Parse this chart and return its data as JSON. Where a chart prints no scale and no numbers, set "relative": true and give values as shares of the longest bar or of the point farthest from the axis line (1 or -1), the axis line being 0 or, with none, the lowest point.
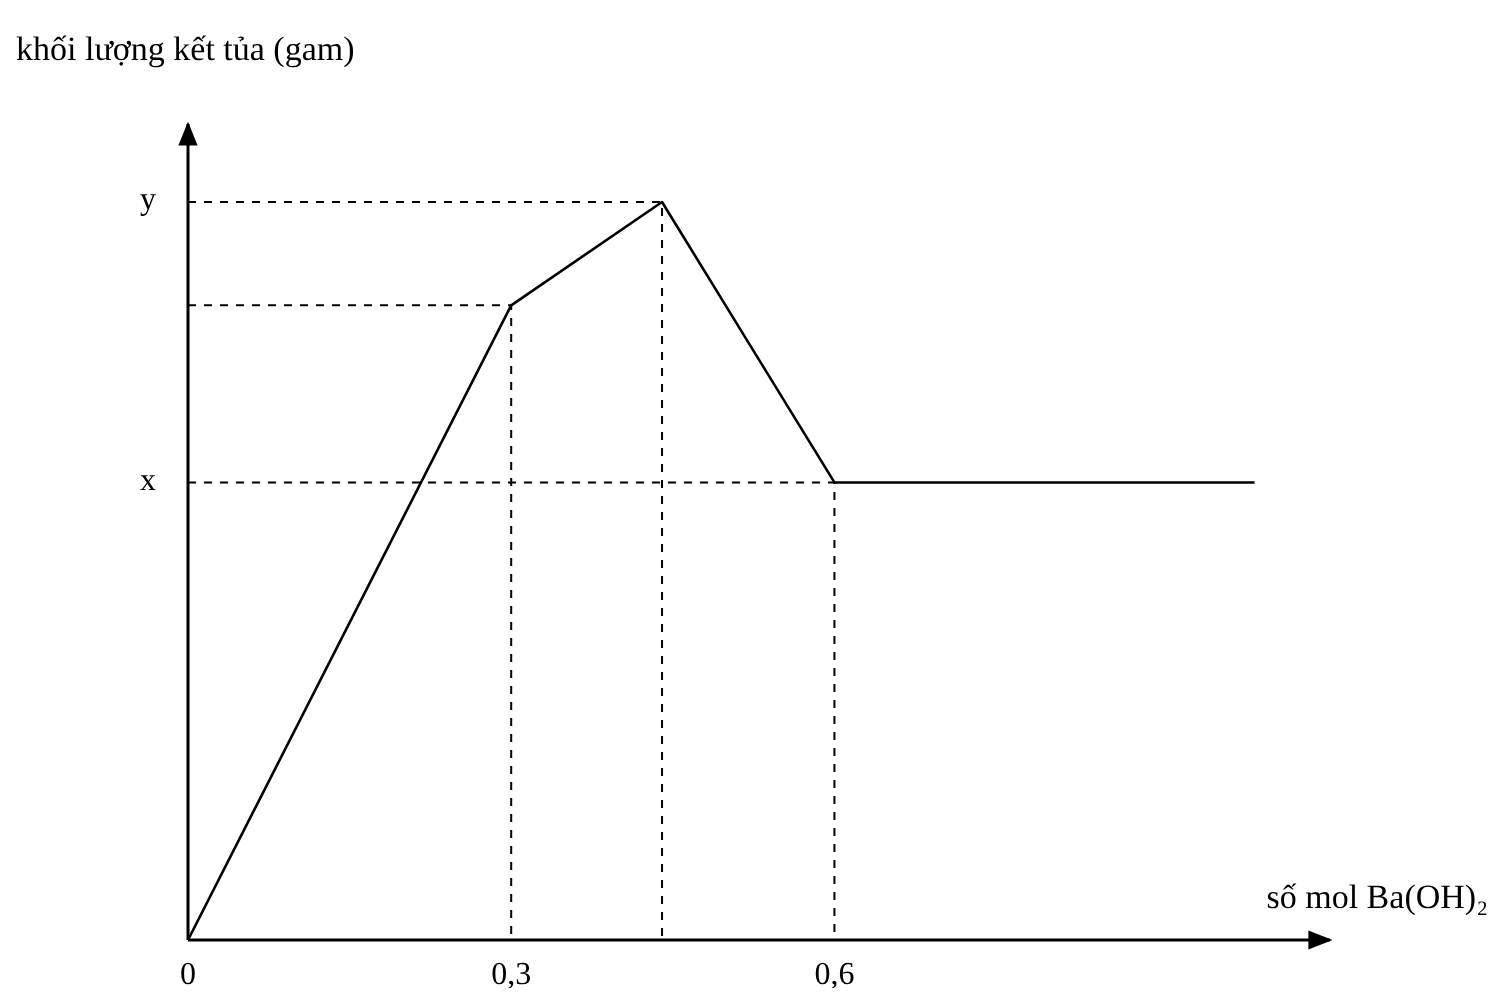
{
  "chart_data": {
    "type": "line",
    "relative": true,
    "xlabel": "số mol Ba(OH)₂",
    "ylabel": "khối lượng kết tủa (gam)",
    "x": [
      0,
      0.3,
      0.44,
      0.6,
      0.99
    ],
    "series": [
      {
        "color": "#000000",
        "values": [
          0,
          0.86,
          1,
          0.62,
          0.62
        ]
      },
      {
        "color": "#000000",
        "line_style": "dashed",
        "x": [
          0,
          0.3,
          0.3
        ],
        "values": [
          0.86,
          0.86,
          0
        ]
      },
      {
        "color": "#000000",
        "line_style": "dashed",
        "x": [
          0,
          0.44,
          0.44
        ],
        "values": [
          1,
          1,
          0
        ]
      },
      {
        "color": "#000000",
        "line_style": "dashed",
        "x": [
          0,
          0.6,
          0.6
        ],
        "values": [
          0.62,
          0.62,
          0
        ]
      }
    ],
    "xlim": [
      0,
      1.06
    ],
    "xticks": [
      0,
      {
        "value": 0.3,
        "label": "0,3"
      },
      {
        "value": 0.6,
        "label": "0,6"
      }
    ],
    "annotations": [
      "y",
      "x"
    ],
    "marker": "none",
    "line_style": "solid"
  }
}
